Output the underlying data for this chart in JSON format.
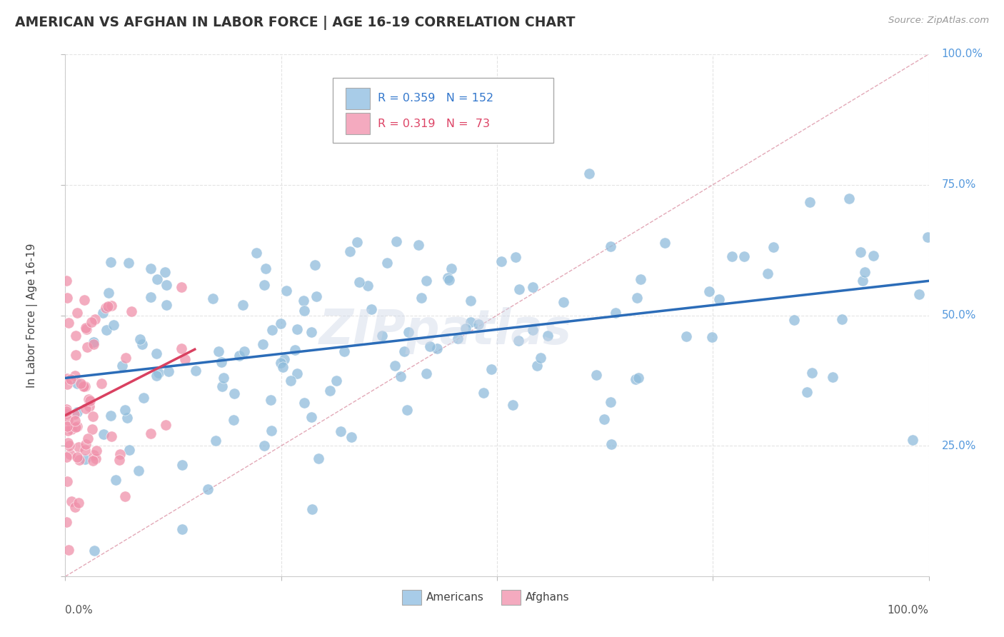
{
  "title": "AMERICAN VS AFGHAN IN LABOR FORCE | AGE 16-19 CORRELATION CHART",
  "source": "Source: ZipAtlas.com",
  "ylabel": "In Labor Force | Age 16-19",
  "ytick_labels": [
    "25.0%",
    "50.0%",
    "75.0%",
    "100.0%"
  ],
  "ytick_vals": [
    25,
    50,
    75,
    100
  ],
  "legend_americans": {
    "R": 0.359,
    "N": 152
  },
  "legend_afghans": {
    "R": 0.319,
    "N": 73
  },
  "american_dot_color": "#8fbcdb",
  "afghan_dot_color": "#f090aa",
  "american_line_color": "#2b6cb8",
  "afghan_line_color": "#d94060",
  "diagonal_color": "#e0a0b0",
  "legend_am_color": "#a8cce8",
  "legend_af_color": "#f4aabf",
  "grid_color": "#dddddd",
  "watermark": "ZIPpatlas",
  "background_color": "#ffffff",
  "title_color": "#333333",
  "source_color": "#999999",
  "yaxis_label_color": "#5599dd",
  "xaxis_label_color": "#555555"
}
